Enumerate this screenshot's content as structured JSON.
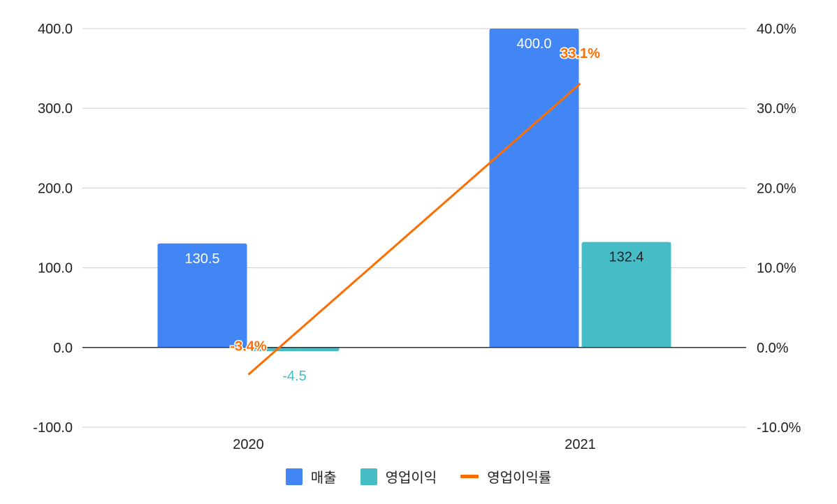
{
  "chart_data": {
    "type": "bar",
    "categories": [
      "2020",
      "2021"
    ],
    "series": [
      {
        "name": "매출",
        "kind": "bar",
        "axis": "left",
        "values": [
          130.5,
          400.0
        ],
        "labels": [
          "130.5",
          "400.0"
        ],
        "color": "#4285f4"
      },
      {
        "name": "영업이익",
        "kind": "bar",
        "axis": "left",
        "values": [
          -4.5,
          132.4
        ],
        "labels": [
          "-4.5",
          "132.4"
        ],
        "color": "#46bdc6"
      },
      {
        "name": "영업이익률",
        "kind": "line",
        "axis": "right",
        "values": [
          -3.4,
          33.1
        ],
        "labels": [
          "-3.4%",
          "33.1%"
        ],
        "color": "#ff6d01"
      }
    ],
    "y_left": {
      "range": [
        -100,
        400
      ],
      "ticks": [
        "400.0",
        "300.0",
        "200.0",
        "100.0",
        "0.0",
        "-100.0"
      ]
    },
    "y_right": {
      "range": [
        -10,
        40
      ],
      "unit": "%",
      "ticks": [
        "40.0%",
        "30.0%",
        "20.0%",
        "10.0%",
        "0.0%",
        "-10.0%"
      ]
    },
    "grid": true,
    "legend_position": "bottom",
    "title": "",
    "xlabel": "",
    "ylabel": ""
  }
}
